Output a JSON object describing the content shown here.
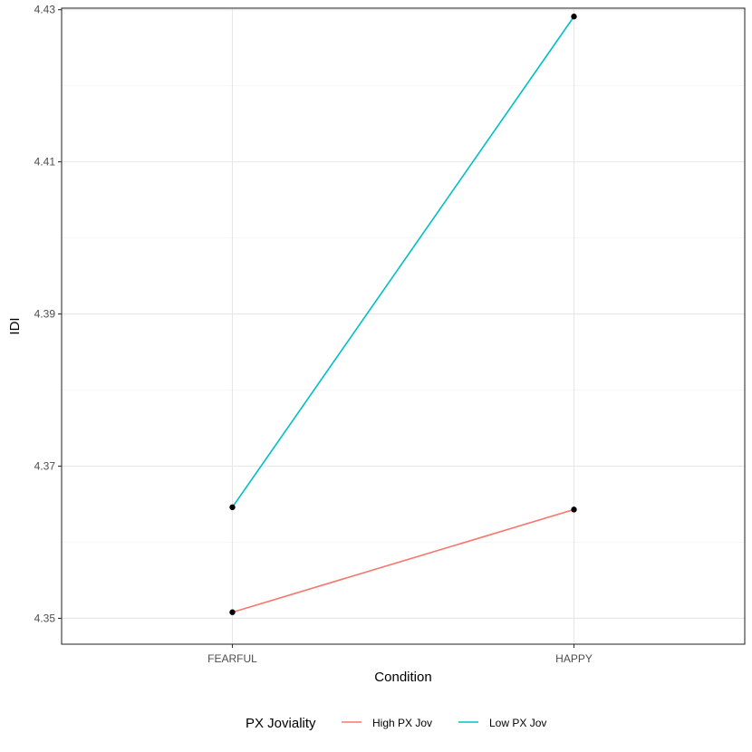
{
  "chart_data": {
    "type": "line",
    "xlabel": "Condition",
    "ylabel": "IDI",
    "categories": [
      "FEARFUL",
      "HAPPY"
    ],
    "ylim": [
      4.3466,
      4.4302
    ],
    "y_ticks": [
      4.35,
      4.37,
      4.39,
      4.41,
      4.43
    ],
    "y_tick_labels": [
      "4.35",
      "4.37",
      "4.39",
      "4.41",
      "4.43"
    ],
    "grid": true,
    "series": [
      {
        "name": "High PX Jov",
        "color": "#F8766D",
        "values": [
          4.3508,
          4.3643
        ]
      },
      {
        "name": "Low PX Jov",
        "color": "#00BFC4",
        "values": [
          4.3646,
          4.4291
        ]
      }
    ],
    "legend": {
      "title": "PX Joviality",
      "position": "bottom"
    }
  }
}
